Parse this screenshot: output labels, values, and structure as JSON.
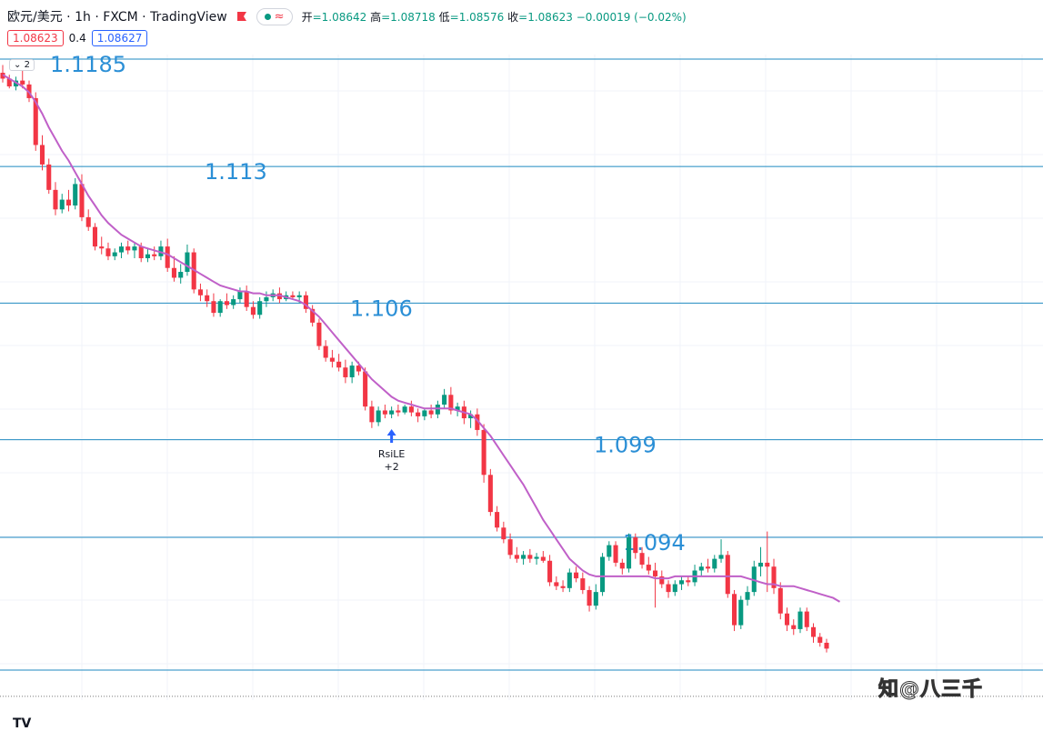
{
  "header": {
    "symbol": "欧元/美元",
    "sep1": "·",
    "interval": "1h",
    "sep2": "·",
    "exchange": "FXCM",
    "sep3": "·",
    "platform": "TradingView",
    "wave_symbol": "≈",
    "ohlc": {
      "open_label": "开",
      "open": "=1.08642",
      "high_label": "高",
      "high": "=1.08718",
      "low_label": "低",
      "low": "=1.08576",
      "close_label": "收",
      "close": "=1.08623",
      "change": "−0.00019 (−0.02%)"
    },
    "bid": "1.08623",
    "spread": "0.4",
    "ask": "1.08627",
    "collapse_count": "2"
  },
  "colors": {
    "up": "#089981",
    "down": "#f23645",
    "ma": "#c060c8",
    "level": "#1f8ac0",
    "label": "#2b8fd6",
    "signal": "#2962ff"
  },
  "watermark": "知@八三千",
  "logo": "TV",
  "chart_data": {
    "type": "candlestick",
    "title": "欧元/美元 · 1h · FXCM",
    "y_axis_ticks": [],
    "ylim": [
      1.0855,
      1.1195
    ],
    "horizontal_levels": [
      {
        "value": 1.1185,
        "label": "1.1185"
      },
      {
        "value": 1.113,
        "label": "1.113"
      },
      {
        "value": 1.106,
        "label": "1.106"
      },
      {
        "value": 1.099,
        "label": "1.099"
      },
      {
        "value": 1.094,
        "label": "1.094"
      },
      {
        "value": 1.0872,
        "label": ""
      }
    ],
    "current_price": 1.08623,
    "signal": {
      "index": 59,
      "label": "RsiLE",
      "sublabel": "+2"
    },
    "candles": [
      [
        1.1178,
        1.1182,
        1.1173,
        1.1175
      ],
      [
        1.1175,
        1.1177,
        1.117,
        1.1171
      ],
      [
        1.1171,
        1.1176,
        1.1169,
        1.1174
      ],
      [
        1.1174,
        1.118,
        1.117,
        1.1172
      ],
      [
        1.1172,
        1.1174,
        1.1163,
        1.1165
      ],
      [
        1.1165,
        1.1168,
        1.1138,
        1.1141
      ],
      [
        1.1141,
        1.1146,
        1.1128,
        1.1131
      ],
      [
        1.1131,
        1.1134,
        1.1116,
        1.1118
      ],
      [
        1.1118,
        1.1122,
        1.1105,
        1.1108
      ],
      [
        1.1108,
        1.1116,
        1.1106,
        1.1113
      ],
      [
        1.1113,
        1.1118,
        1.1107,
        1.111
      ],
      [
        1.111,
        1.1124,
        1.1108,
        1.1121
      ],
      [
        1.1121,
        1.1126,
        1.1102,
        1.1104
      ],
      [
        1.1104,
        1.1108,
        1.1097,
        1.1099
      ],
      [
        1.1099,
        1.1101,
        1.1087,
        1.1089
      ],
      [
        1.1089,
        1.1094,
        1.1085,
        1.1088
      ],
      [
        1.1088,
        1.1091,
        1.1082,
        1.1084
      ],
      [
        1.1084,
        1.1088,
        1.1082,
        1.1086
      ],
      [
        1.1086,
        1.1091,
        1.1083,
        1.1089
      ],
      [
        1.1089,
        1.1092,
        1.1085,
        1.1087
      ],
      [
        1.1087,
        1.1091,
        1.1083,
        1.1089
      ],
      [
        1.1089,
        1.1091,
        1.1081,
        1.1083
      ],
      [
        1.1083,
        1.1088,
        1.1081,
        1.1085
      ],
      [
        1.1085,
        1.1089,
        1.1082,
        1.1084
      ],
      [
        1.1084,
        1.1092,
        1.1082,
        1.1089
      ],
      [
        1.1089,
        1.1093,
        1.1076,
        1.1078
      ],
      [
        1.1078,
        1.1084,
        1.1071,
        1.1073
      ],
      [
        1.1073,
        1.108,
        1.107,
        1.1076
      ],
      [
        1.1076,
        1.109,
        1.1074,
        1.1086
      ],
      [
        1.1086,
        1.1088,
        1.1065,
        1.1067
      ],
      [
        1.1067,
        1.107,
        1.1061,
        1.1064
      ],
      [
        1.1064,
        1.1067,
        1.1058,
        1.1061
      ],
      [
        1.1061,
        1.1065,
        1.1053,
        1.1055
      ],
      [
        1.1055,
        1.1062,
        1.1053,
        1.1061
      ],
      [
        1.1061,
        1.1065,
        1.1057,
        1.1059
      ],
      [
        1.1059,
        1.1064,
        1.1057,
        1.1062
      ],
      [
        1.1062,
        1.1068,
        1.106,
        1.1066
      ],
      [
        1.1066,
        1.1069,
        1.1056,
        1.1058
      ],
      [
        1.1058,
        1.1061,
        1.1052,
        1.1054
      ],
      [
        1.1054,
        1.1063,
        1.1052,
        1.1061
      ],
      [
        1.1061,
        1.1066,
        1.1058,
        1.1063
      ],
      [
        1.1063,
        1.1067,
        1.1061,
        1.1065
      ],
      [
        1.1065,
        1.1068,
        1.106,
        1.1062
      ],
      [
        1.1062,
        1.1066,
        1.1061,
        1.1064
      ],
      [
        1.1064,
        1.1066,
        1.1062,
        1.1063
      ],
      [
        1.1063,
        1.1066,
        1.106,
        1.1064
      ],
      [
        1.1064,
        1.1066,
        1.1055,
        1.1057
      ],
      [
        1.1057,
        1.1059,
        1.1048,
        1.105
      ],
      [
        1.105,
        1.1052,
        1.1036,
        1.1038
      ],
      [
        1.1038,
        1.1041,
        1.103,
        1.1032
      ],
      [
        1.1032,
        1.1036,
        1.1027,
        1.103
      ],
      [
        1.103,
        1.1034,
        1.1025,
        1.1027
      ],
      [
        1.1027,
        1.1031,
        1.1019,
        1.1022
      ],
      [
        1.1022,
        1.103,
        1.1019,
        1.1028
      ],
      [
        1.1028,
        1.103,
        1.1023,
        1.1025
      ],
      [
        1.1025,
        1.1027,
        1.1005,
        1.1007
      ],
      [
        1.1007,
        1.101,
        1.0996,
        1.0999
      ],
      [
        1.0999,
        1.1007,
        1.0997,
        1.1005
      ],
      [
        1.1005,
        1.1008,
        1.1001,
        1.1003
      ],
      [
        1.1003,
        1.1007,
        1.1001,
        1.1005
      ],
      [
        1.1005,
        1.1008,
        1.1002,
        1.1004
      ],
      [
        1.1004,
        1.1008,
        1.1003,
        1.1007
      ],
      [
        1.1007,
        1.101,
        1.1002,
        1.1004
      ],
      [
        1.1004,
        1.1006,
        1.0999,
        1.1002
      ],
      [
        1.1002,
        1.1006,
        1.1,
        1.1005
      ],
      [
        1.1005,
        1.1008,
        1.1001,
        1.1003
      ],
      [
        1.1003,
        1.101,
        1.1001,
        1.1008
      ],
      [
        1.1008,
        1.1016,
        1.1006,
        1.1013
      ],
      [
        1.1013,
        1.1017,
        1.1003,
        1.1005
      ],
      [
        1.1005,
        1.1009,
        1.1002,
        1.1007
      ],
      [
        1.1007,
        1.101,
        1.0998,
        1.1001
      ],
      [
        1.1001,
        1.1005,
        1.0996,
        1.1003
      ],
      [
        1.1003,
        1.1006,
        1.0992,
        1.0995
      ],
      [
        1.0995,
        1.0998,
        1.0968,
        1.0972
      ],
      [
        1.0972,
        1.0975,
        1.0951,
        1.0953
      ],
      [
        1.0953,
        1.0956,
        1.0943,
        1.0945
      ],
      [
        1.0945,
        1.0948,
        1.0937,
        1.0939
      ],
      [
        1.0939,
        1.0942,
        1.0929,
        1.0931
      ],
      [
        1.0931,
        1.0935,
        1.0927,
        1.0929
      ],
      [
        1.0929,
        1.0933,
        1.0926,
        1.0931
      ],
      [
        1.0931,
        1.0934,
        1.0927,
        1.0929
      ],
      [
        1.0929,
        1.0932,
        1.0926,
        1.093
      ],
      [
        1.093,
        1.0933,
        1.0927,
        1.0928
      ],
      [
        1.0928,
        1.0931,
        1.0915,
        1.0917
      ],
      [
        1.0917,
        1.092,
        1.0913,
        1.0915
      ],
      [
        1.0915,
        1.0918,
        1.0912,
        1.0914
      ],
      [
        1.0914,
        1.0924,
        1.0912,
        1.0922
      ],
      [
        1.0922,
        1.0925,
        1.0917,
        1.0919
      ],
      [
        1.0919,
        1.0922,
        1.0911,
        1.0913
      ],
      [
        1.0913,
        1.0915,
        1.0902,
        1.0905
      ],
      [
        1.0905,
        1.0916,
        1.0903,
        1.0912
      ],
      [
        1.0912,
        1.0932,
        1.091,
        1.093
      ],
      [
        1.093,
        1.0938,
        1.0928,
        1.0936
      ],
      [
        1.0936,
        1.0938,
        1.0925,
        1.0927
      ],
      [
        1.0927,
        1.0929,
        1.0921,
        1.0924
      ],
      [
        1.0924,
        1.0942,
        1.0922,
        1.094
      ],
      [
        1.094,
        1.0942,
        1.0929,
        1.0932
      ],
      [
        1.0932,
        1.0935,
        1.0924,
        1.0926
      ],
      [
        1.0926,
        1.093,
        1.0921,
        1.0923
      ],
      [
        1.0923,
        1.0927,
        1.0904,
        1.092
      ],
      [
        1.092,
        1.0923,
        1.0914,
        1.0916
      ],
      [
        1.0916,
        1.0918,
        1.0909,
        1.0912
      ],
      [
        1.0912,
        1.0918,
        1.091,
        1.0916
      ],
      [
        1.0916,
        1.092,
        1.0913,
        1.0918
      ],
      [
        1.0918,
        1.092,
        1.0915,
        1.0917
      ],
      [
        1.0917,
        1.0926,
        1.0915,
        1.0923
      ],
      [
        1.0923,
        1.0927,
        1.092,
        1.0925
      ],
      [
        1.0925,
        1.0929,
        1.0922,
        1.0924
      ],
      [
        1.0924,
        1.0931,
        1.0922,
        1.0929
      ],
      [
        1.0929,
        1.0939,
        1.0927,
        1.0931
      ],
      [
        1.0931,
        1.0933,
        1.0909,
        1.0911
      ],
      [
        1.0911,
        1.0913,
        1.0892,
        1.0895
      ],
      [
        1.0895,
        1.091,
        1.0893,
        1.0908
      ],
      [
        1.0908,
        1.0915,
        1.0905,
        1.0912
      ],
      [
        1.0912,
        1.0928,
        1.091,
        1.0925
      ],
      [
        1.0925,
        1.0935,
        1.092,
        1.0927
      ],
      [
        1.0927,
        1.0943,
        1.0912,
        1.0925
      ],
      [
        1.0925,
        1.0929,
        1.0911,
        1.0914
      ],
      [
        1.0914,
        1.0917,
        1.0898,
        1.0901
      ],
      [
        1.0901,
        1.0904,
        1.0892,
        1.0895
      ],
      [
        1.0895,
        1.0898,
        1.089,
        1.0893
      ],
      [
        1.0893,
        1.0904,
        1.0891,
        1.0902
      ],
      [
        1.0902,
        1.0904,
        1.0892,
        1.0894
      ],
      [
        1.0894,
        1.0896,
        1.0886,
        1.0889
      ],
      [
        1.0889,
        1.0891,
        1.0884,
        1.0886
      ],
      [
        1.0886,
        1.0888,
        1.0881,
        1.0883
      ]
    ],
    "ma": [
      1.1177,
      1.1175,
      1.1173,
      1.1171,
      1.1168,
      1.1163,
      1.1157,
      1.115,
      1.1144,
      1.1138,
      1.1133,
      1.1127,
      1.1121,
      1.1115,
      1.111,
      1.1105,
      1.1101,
      1.1098,
      1.1095,
      1.1093,
      1.1091,
      1.1089,
      1.1088,
      1.1087,
      1.1086,
      1.1085,
      1.1083,
      1.1081,
      1.1079,
      1.1077,
      1.1075,
      1.1073,
      1.1071,
      1.1069,
      1.1068,
      1.1067,
      1.1066,
      1.1066,
      1.1065,
      1.1065,
      1.1064,
      1.1064,
      1.1064,
      1.1063,
      1.1062,
      1.1061,
      1.1059,
      1.1056,
      1.1053,
      1.1049,
      1.1045,
      1.1041,
      1.1037,
      1.1033,
      1.1029,
      1.1025,
      1.1021,
      1.1018,
      1.1015,
      1.1012,
      1.101,
      1.1009,
      1.1008,
      1.1007,
      1.1006,
      1.1006,
      1.1006,
      1.1006,
      1.1006,
      1.1005,
      1.1004,
      1.1003,
      1.1,
      1.0996,
      1.0992,
      1.0987,
      1.0982,
      1.0977,
      1.0972,
      1.0967,
      1.0961,
      1.0955,
      1.0949,
      1.0944,
      1.0939,
      1.0934,
      1.0929,
      1.0926,
      1.0923,
      1.0921,
      1.092,
      1.092,
      1.092,
      1.092,
      1.092,
      1.092,
      1.092,
      1.092,
      1.092,
      1.0919,
      1.0919,
      1.0919,
      1.092,
      1.092,
      1.092,
      1.092,
      1.092,
      1.092,
      1.092,
      1.092,
      1.092,
      1.092,
      1.092,
      1.0919,
      1.0918,
      1.0917,
      1.0916,
      1.0916,
      1.0915,
      1.0915,
      1.0915,
      1.0914,
      1.0913,
      1.0912,
      1.0911,
      1.091,
      1.0909,
      1.0907
    ]
  }
}
